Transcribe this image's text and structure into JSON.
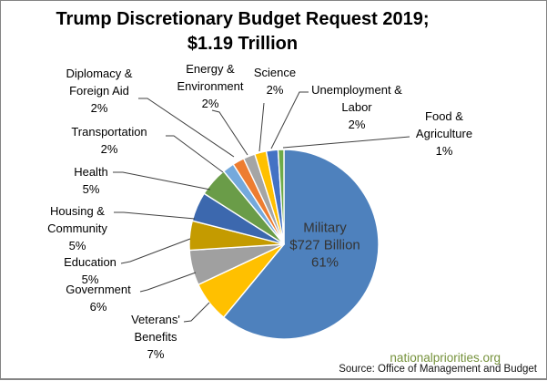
{
  "title": {
    "line1": "Trump Discretionary Budget Request 2019;",
    "line2": "$1.19 Trillion"
  },
  "footer": {
    "brand": "nationalpriorities.org",
    "brand_color": "#76923C",
    "source": "Source: Office of Management and Budget"
  },
  "chart_data": {
    "type": "pie",
    "title": "Trump Discretionary Budget Request 2019; $1.19 Trillion",
    "total_label": "$1.19 Trillion",
    "start_angle_deg": 0,
    "direction": "clockwise",
    "legend_position": "callout-labels",
    "slices": [
      {
        "key": "military",
        "label": "Military",
        "value": 61,
        "pct_label": "61%",
        "value_label": "$727 Billion",
        "color": "#4E81BD"
      },
      {
        "key": "veterans",
        "label": "Veterans' Benefits",
        "value": 7,
        "pct_label": "7%",
        "color": "#FFC000"
      },
      {
        "key": "government",
        "label": "Government",
        "value": 6,
        "pct_label": "6%",
        "color": "#A0A0A0"
      },
      {
        "key": "education",
        "label": "Education",
        "value": 5,
        "pct_label": "5%",
        "color": "#C49B00"
      },
      {
        "key": "housing",
        "label": "Housing & Community",
        "value": 5,
        "pct_label": "5%",
        "color": "#3C68AE"
      },
      {
        "key": "health",
        "label": "Health",
        "value": 5,
        "pct_label": "5%",
        "color": "#6A9C48"
      },
      {
        "key": "transportation",
        "label": "Transportation",
        "value": 2,
        "pct_label": "2%",
        "color": "#74A9DC"
      },
      {
        "key": "diplomacy",
        "label": "Diplomacy & Foreign Aid",
        "value": 2,
        "pct_label": "2%",
        "color": "#ED7D31"
      },
      {
        "key": "energy",
        "label": "Energy & Environment",
        "value": 2,
        "pct_label": "2%",
        "color": "#A5A5A5"
      },
      {
        "key": "science",
        "label": "Science",
        "value": 2,
        "pct_label": "2%",
        "color": "#FFC000"
      },
      {
        "key": "unemployment",
        "label": "Unemployment & Labor",
        "value": 2,
        "pct_label": "2%",
        "color": "#4472C4"
      },
      {
        "key": "food_agriculture",
        "label": "Food & Agriculture",
        "value": 1,
        "pct_label": "1%",
        "color": "#6EAB49"
      }
    ]
  }
}
